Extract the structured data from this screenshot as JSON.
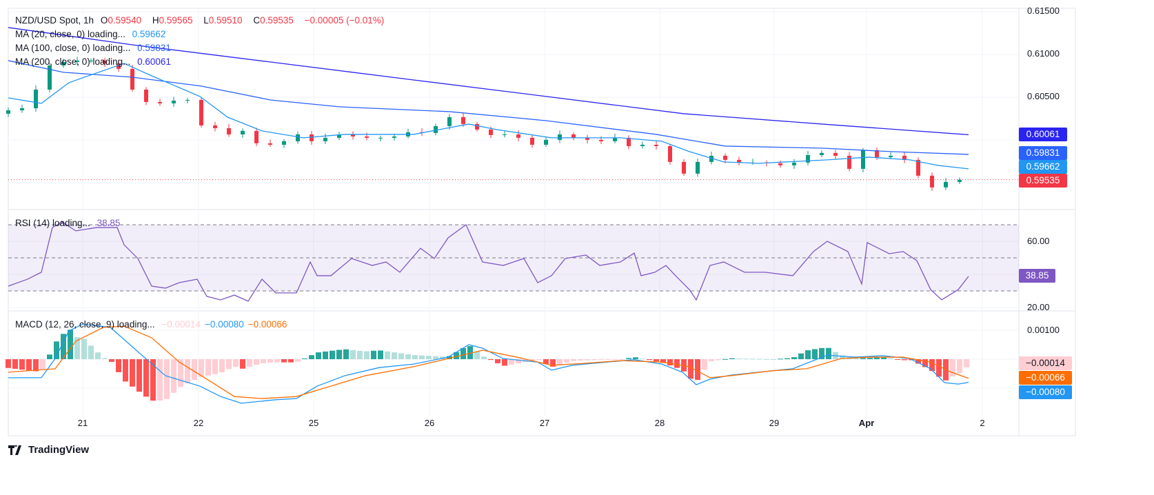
{
  "legend": {
    "symbol": "NZD/USD Spot, 1h",
    "o_label": "O",
    "o": "0.59540",
    "h_label": "H",
    "h": "0.59565",
    "l_label": "L",
    "l": "0.59510",
    "c_label": "C",
    "c": "0.59535",
    "change": "−0.00005 (−0.01%)",
    "ma20": "MA (20, close, 0) loading...",
    "ma20_val": "0.59662",
    "ma100": "MA (100, close, 0) loading...",
    "ma100_val": "0.59831",
    "ma200": "MA (200, close, 0) loading...",
    "ma200_val": "0.60061",
    "rsi": "RSI (14) loading...",
    "rsi_val": "38.85",
    "macd": "MACD (12, 26, close, 9) loading...",
    "macd_hist": "−0.00014",
    "macd_line": "−0.00080",
    "macd_signal": "−0.00066"
  },
  "price_axis": [
    "0.61500",
    "0.61000",
    "0.60500"
  ],
  "rsi_axis": [
    "60.00",
    "20.00"
  ],
  "macd_axis": [
    "0.00100"
  ],
  "tags": {
    "ma200": "0.60061",
    "ma100": "0.59831",
    "ma20": "0.59662",
    "last": "0.59535",
    "rsi": "38.85",
    "hist": "−0.00014",
    "signal": "−0.00066",
    "macd": "−0.00080"
  },
  "time_labels": [
    "21",
    "22",
    "25",
    "26",
    "27",
    "28",
    "29",
    "Apr",
    "2"
  ],
  "brand": "TradingView",
  "colors": {
    "up": "#089981",
    "down": "#f23645",
    "ma20": "#2196f3",
    "ma100": "#2962ff",
    "ma200": "#2a24f0",
    "rsi": "#7e57c2",
    "macd": "#2196f3",
    "signal": "#ff6d00"
  },
  "chart_data": [
    {
      "type": "candlestick",
      "title": "NZD/USD Spot, 1h",
      "ylim": [
        0.5935,
        0.6155
      ],
      "closes": [
        0.60307,
        0.60347,
        0.60371,
        0.60589,
        0.60871,
        0.60912,
        0.60928,
        0.60928,
        0.60896,
        0.60831,
        0.60589,
        0.60444,
        0.60428,
        0.6046,
        0.60468,
        0.6017,
        0.60138,
        0.60065,
        0.60106,
        0.59961,
        0.59944,
        0.59985,
        0.60065,
        0.59985,
        0.60025,
        0.60065,
        0.60041,
        0.60025,
        0.60025,
        0.60041,
        0.6009,
        0.60082,
        0.60162,
        0.60267,
        0.60186,
        0.60122,
        0.60057,
        0.60065,
        0.60025,
        0.59944,
        0.60001,
        0.60065,
        0.60025,
        0.60001,
        0.59985,
        0.60025,
        0.59928,
        0.59944,
        0.59928,
        0.59743,
        0.59606,
        0.59743,
        0.59815,
        0.59767,
        0.59735,
        0.59735,
        0.59727,
        0.59703,
        0.59735,
        0.59823,
        0.59848,
        0.59815,
        0.59662,
        0.5988,
        0.59799,
        0.59815,
        0.59767,
        0.59582,
        0.59445,
        0.59509,
        0.59535
      ],
      "ma20": [
        [
          0,
          0.60492
        ],
        [
          2.4,
          0.60428
        ],
        [
          4.4,
          0.6067
        ],
        [
          8.4,
          0.60896
        ],
        [
          10.4,
          0.6075
        ],
        [
          13.9,
          0.60509
        ],
        [
          15.9,
          0.60267
        ],
        [
          18.4,
          0.60106
        ],
        [
          21.4,
          0.60025
        ],
        [
          24.4,
          0.60065
        ],
        [
          29.4,
          0.60065
        ],
        [
          33.4,
          0.60186
        ],
        [
          35.4,
          0.60122
        ],
        [
          39.4,
          0.60025
        ],
        [
          44.4,
          0.60025
        ],
        [
          47.4,
          0.59985
        ],
        [
          49.4,
          0.59864
        ],
        [
          51.9,
          0.59743
        ],
        [
          54.4,
          0.59727
        ],
        [
          59.4,
          0.59767
        ],
        [
          62.4,
          0.59799
        ],
        [
          65.4,
          0.59767
        ],
        [
          67.4,
          0.59703
        ],
        [
          69.65,
          0.59662
        ]
      ],
      "ma100": [
        [
          0,
          0.60928
        ],
        [
          4,
          0.60791
        ],
        [
          9,
          0.60734
        ],
        [
          14,
          0.6063
        ],
        [
          19,
          0.60468
        ],
        [
          24,
          0.60388
        ],
        [
          32,
          0.60331
        ],
        [
          39,
          0.60226
        ],
        [
          47,
          0.60065
        ],
        [
          52,
          0.59928
        ],
        [
          59,
          0.59904
        ],
        [
          64,
          0.59864
        ],
        [
          69.65,
          0.59831
        ]
      ],
      "ma200": [
        [
          0,
          0.61315
        ],
        [
          9,
          0.61113
        ],
        [
          19,
          0.60912
        ],
        [
          29,
          0.6071
        ],
        [
          39,
          0.60509
        ],
        [
          49,
          0.60307
        ],
        [
          59,
          0.60186
        ],
        [
          69.65,
          0.60061
        ]
      ]
    },
    {
      "type": "line",
      "title": "RSI (14)",
      "ylim": [
        20,
        75
      ],
      "bands": [
        30,
        50,
        70
      ],
      "values": [
        [
          0,
          32.9
        ],
        [
          1.4,
          37.1
        ],
        [
          2.4,
          41.3
        ],
        [
          3.2,
          68.3
        ],
        [
          3.9,
          71.7
        ],
        [
          4.9,
          66.3
        ],
        [
          6.4,
          68.3
        ],
        [
          7.9,
          68.3
        ],
        [
          8.4,
          57.9
        ],
        [
          9.4,
          49.6
        ],
        [
          10.4,
          32.9
        ],
        [
          11.4,
          31.7
        ],
        [
          12.4,
          35.0
        ],
        [
          13.7,
          37.1
        ],
        [
          14.4,
          26.7
        ],
        [
          15.4,
          24.6
        ],
        [
          16.4,
          27.5
        ],
        [
          17.4,
          23.8
        ],
        [
          18.4,
          37.1
        ],
        [
          19.4,
          28.8
        ],
        [
          20.9,
          28.8
        ],
        [
          21.9,
          47.5
        ],
        [
          22.4,
          39.2
        ],
        [
          23.4,
          39.2
        ],
        [
          24.9,
          49.6
        ],
        [
          26.4,
          45.4
        ],
        [
          27.4,
          47.5
        ],
        [
          28.4,
          41.3
        ],
        [
          29.9,
          55.8
        ],
        [
          30.9,
          49.6
        ],
        [
          31.9,
          62.1
        ],
        [
          33.2,
          70.0
        ],
        [
          34.4,
          47.5
        ],
        [
          35.9,
          45.4
        ],
        [
          37.4,
          49.6
        ],
        [
          38.4,
          35.0
        ],
        [
          39.4,
          39.2
        ],
        [
          40.4,
          49.6
        ],
        [
          41.9,
          51.7
        ],
        [
          42.9,
          45.4
        ],
        [
          44.4,
          47.5
        ],
        [
          45.4,
          52.9
        ],
        [
          45.9,
          39.2
        ],
        [
          46.9,
          41.3
        ],
        [
          47.7,
          45.4
        ],
        [
          48.4,
          39.2
        ],
        [
          49.4,
          30.8
        ],
        [
          49.9,
          24.6
        ],
        [
          50.9,
          45.4
        ],
        [
          51.9,
          47.5
        ],
        [
          53.4,
          41.3
        ],
        [
          54.9,
          41.3
        ],
        [
          56.9,
          39.2
        ],
        [
          58.4,
          53.8
        ],
        [
          59.4,
          60.0
        ],
        [
          60.9,
          53.8
        ],
        [
          61.9,
          34.2
        ],
        [
          62.3,
          59.2
        ],
        [
          63.9,
          52.5
        ],
        [
          64.9,
          53.8
        ],
        [
          65.9,
          48.3
        ],
        [
          66.9,
          30.8
        ],
        [
          67.7,
          24.6
        ],
        [
          68.9,
          30.8
        ],
        [
          69.65,
          38.85
        ]
      ]
    },
    {
      "type": "line",
      "title": "MACD (12, 26, close, 9)",
      "units": "1e-5",
      "ylim": [
        -180,
        140
      ],
      "macd": [
        [
          0,
          -64
        ],
        [
          2.4,
          -64
        ],
        [
          3.4,
          2
        ],
        [
          4.4,
          98
        ],
        [
          5.4,
          121
        ],
        [
          7.4,
          110
        ],
        [
          9.4,
          26
        ],
        [
          11.4,
          -57
        ],
        [
          13.9,
          -93
        ],
        [
          15.4,
          -129
        ],
        [
          16.9,
          -152
        ],
        [
          19.4,
          -140
        ],
        [
          20.9,
          -136
        ],
        [
          22.4,
          -93
        ],
        [
          24.4,
          -57
        ],
        [
          26.9,
          -29
        ],
        [
          29.4,
          -17
        ],
        [
          31.9,
          7
        ],
        [
          33.4,
          50
        ],
        [
          34.4,
          38
        ],
        [
          35.9,
          2
        ],
        [
          38.4,
          -10
        ],
        [
          39.4,
          -38
        ],
        [
          40.9,
          -21
        ],
        [
          43.4,
          -10
        ],
        [
          45.4,
          -2
        ],
        [
          47.4,
          -17
        ],
        [
          48.9,
          -45
        ],
        [
          49.9,
          -88
        ],
        [
          50.9,
          -69
        ],
        [
          52.4,
          -55
        ],
        [
          54.4,
          -45
        ],
        [
          56.9,
          -33
        ],
        [
          59.4,
          14
        ],
        [
          61.4,
          7
        ],
        [
          63.4,
          12
        ],
        [
          65.4,
          2
        ],
        [
          66.9,
          -33
        ],
        [
          67.9,
          -81
        ],
        [
          68.9,
          -86
        ],
        [
          69.65,
          -80
        ]
      ],
      "signal": [
        [
          0,
          -45
        ],
        [
          3.4,
          -33
        ],
        [
          4.9,
          62
        ],
        [
          6.9,
          110
        ],
        [
          8.4,
          114
        ],
        [
          10.4,
          74
        ],
        [
          12.4,
          -10
        ],
        [
          14.4,
          -69
        ],
        [
          16.4,
          -129
        ],
        [
          18.4,
          -136
        ],
        [
          20.9,
          -129
        ],
        [
          23.4,
          -93
        ],
        [
          25.9,
          -57
        ],
        [
          29.4,
          -26
        ],
        [
          31.9,
          2
        ],
        [
          34.4,
          31
        ],
        [
          36.9,
          7
        ],
        [
          39.4,
          -21
        ],
        [
          41.9,
          -14
        ],
        [
          44.4,
          -5
        ],
        [
          47.4,
          -10
        ],
        [
          49.4,
          -26
        ],
        [
          50.9,
          -64
        ],
        [
          52.4,
          -57
        ],
        [
          55.4,
          -40
        ],
        [
          57.9,
          -33
        ],
        [
          60.4,
          2
        ],
        [
          62.4,
          7
        ],
        [
          64.9,
          7
        ],
        [
          66.9,
          -10
        ],
        [
          68.4,
          -45
        ],
        [
          69.65,
          -66
        ]
      ]
    }
  ]
}
